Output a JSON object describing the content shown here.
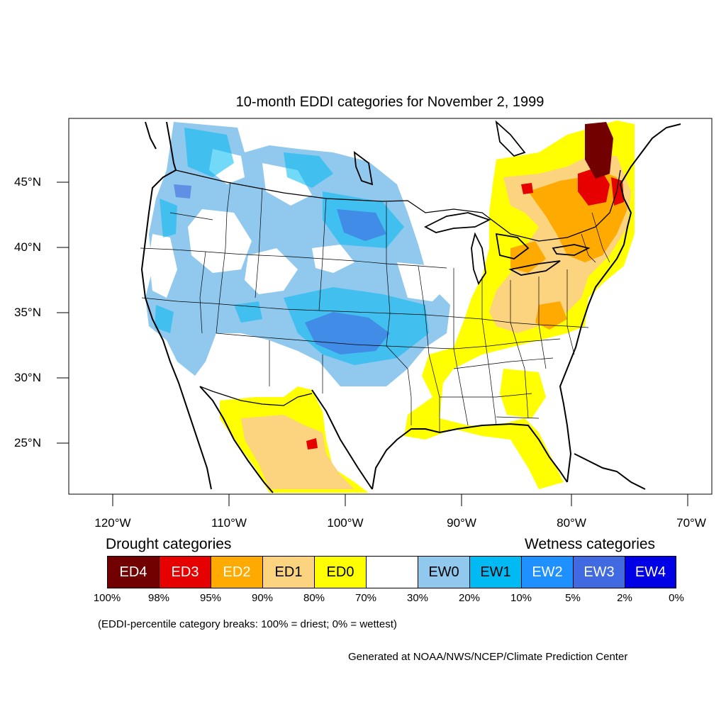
{
  "title": "10-month EDDI categories for November 2, 1999",
  "latitude_labels": [
    "45°N",
    "40°N",
    "35°N",
    "30°N",
    "25°N"
  ],
  "longitude_labels": [
    "120°W",
    "110°W",
    "100°W",
    "90°W",
    "80°W",
    "70°W"
  ],
  "legend": {
    "drought_heading": "Drought categories",
    "wetness_heading": "Wetness categories",
    "categories": [
      {
        "label": "ED4",
        "color": "#730000",
        "text_color": "#ffffff"
      },
      {
        "label": "ED3",
        "color": "#e60000",
        "text_color": "#ffffff"
      },
      {
        "label": "ED2",
        "color": "#ffaa00",
        "text_color": "#ffffff"
      },
      {
        "label": "ED1",
        "color": "#fcd37f",
        "text_color": "#000000"
      },
      {
        "label": "ED0",
        "color": "#ffff00",
        "text_color": "#000000"
      },
      {
        "label": "",
        "color": "#ffffff",
        "text_color": "#000000"
      },
      {
        "label": "EW0",
        "color": "#90c8ee",
        "text_color": "#000000"
      },
      {
        "label": "EW1",
        "color": "#00baf3",
        "text_color": "#000000"
      },
      {
        "label": "EW2",
        "color": "#1e90ff",
        "text_color": "#ffffff"
      },
      {
        "label": "EW3",
        "color": "#4169e1",
        "text_color": "#ffffff"
      },
      {
        "label": "EW4",
        "color": "#0000e6",
        "text_color": "#ffffff"
      }
    ],
    "breaks": [
      "100%",
      "98%",
      "95%",
      "90%",
      "80%",
      "70%",
      "30%",
      "20%",
      "10%",
      "5%",
      "2%",
      "0%"
    ],
    "note": "(EDDI-percentile category breaks: 100% = driest; 0% = wettest)"
  },
  "credit": "Generated at NOAA/NWS/NCEP/Climate Prediction Center"
}
